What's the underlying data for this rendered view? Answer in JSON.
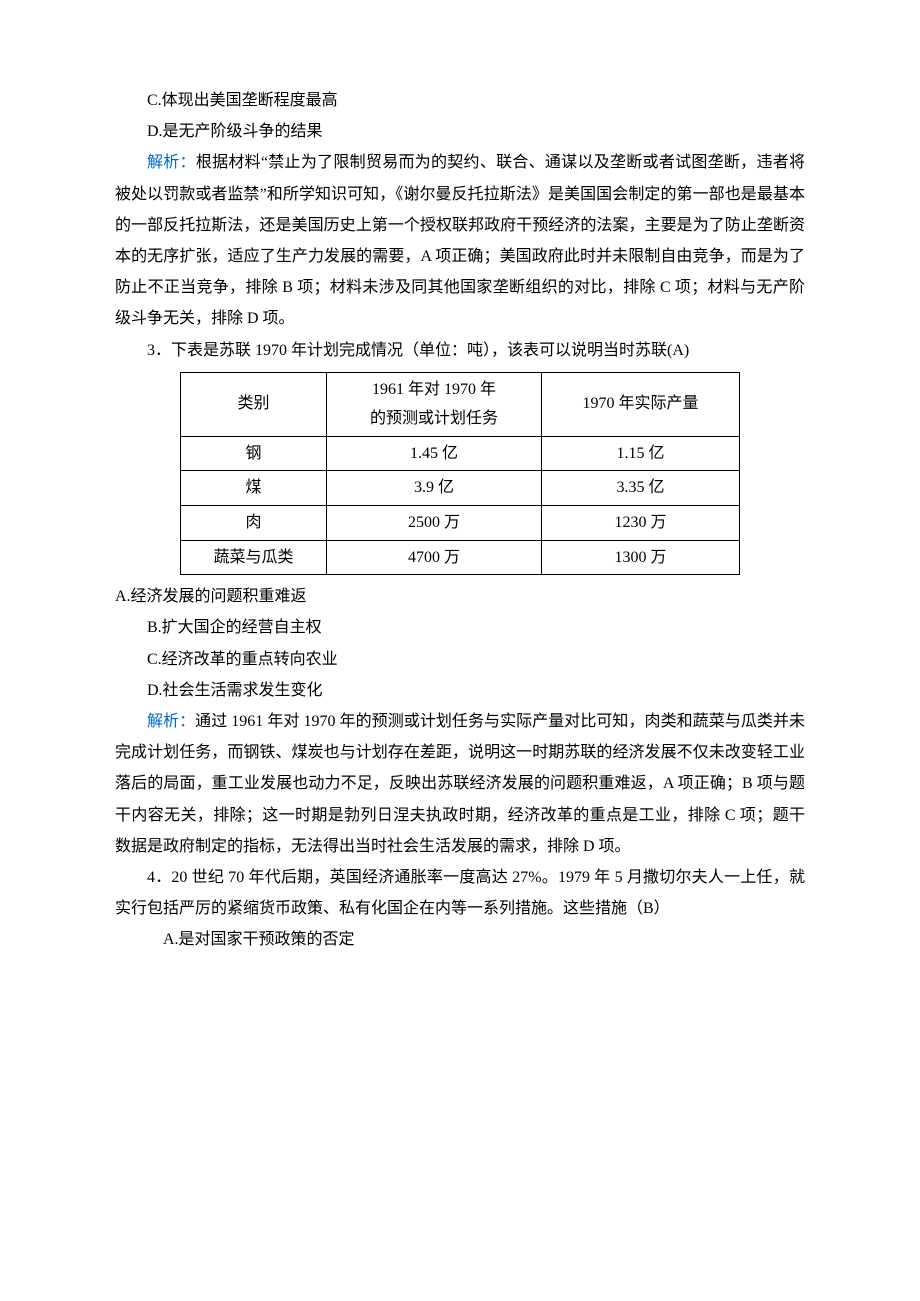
{
  "optC": "C.体现出美国垄断程度最高",
  "optD": "D.是无产阶级斗争的结果",
  "analysisLabel": "解析：",
  "analysis1": "根据材料“禁止为了限制贸易而为的契约、联合、通谋以及垄断或者试图垄断，违者将被处以罚款或者监禁”和所学知识可知，《谢尔曼反托拉斯法》是美国国会制定的第一部也是最基本的一部反托拉斯法，还是美国历史上第一个授权联邦政府干预经济的法案，主要是为了防止垄断资本的无序扩张，适应了生产力发展的需要，A 项正确；美国政府此时并未限制自由竞争，而是为了防止不正当竞争，排除 B 项；材料未涉及同其他国家垄断组织的对比，排除 C 项；材料与无产阶级斗争无关，排除 D 项。",
  "q3": {
    "stem": "3．下表是苏联 1970 年计划完成情况（单位：吨），该表可以说明当时苏联(A)",
    "table": {
      "head": [
        "类别",
        "1961 年对 1970 年\n的预测或计划任务",
        "1970 年实际产量"
      ],
      "rows": [
        [
          "钢",
          "1.45 亿",
          "1.15 亿"
        ],
        [
          "煤",
          "3.9 亿",
          "3.35 亿"
        ],
        [
          "肉",
          "2500 万",
          "1230 万"
        ],
        [
          "蔬菜与瓜类",
          "4700 万",
          "1300 万"
        ]
      ]
    },
    "optA": "A.经济发展的问题积重难返",
    "optB": "B.扩大国企的经营自主权",
    "optC": "C.经济改革的重点转向农业",
    "optD": "D.社会生活需求发生变化",
    "analysis": "通过 1961 年对 1970 年的预测或计划任务与实际产量对比可知，肉类和蔬菜与瓜类并未完成计划任务，而钢铁、煤炭也与计划存在差距，说明这一时期苏联的经济发展不仅未改变轻工业落后的局面，重工业发展也动力不足，反映出苏联经济发展的问题积重难返，A 项正确；B 项与题干内容无关，排除；这一时期是勃列日涅夫执政时期，经济改革的重点是工业，排除 C 项；题干数据是政府制定的指标，无法得出当时社会生活发展的需求，排除 D 项。"
  },
  "q4": {
    "stem": "4．20 世纪 70 年代后期，英国经济通胀率一度高达 27%。1979 年 5 月撒切尔夫人一上任，就实行包括严厉的紧缩货币政策、私有化国企在内等一系列措施。这些措施（B）",
    "optA": "A.是对国家干预政策的否定"
  }
}
